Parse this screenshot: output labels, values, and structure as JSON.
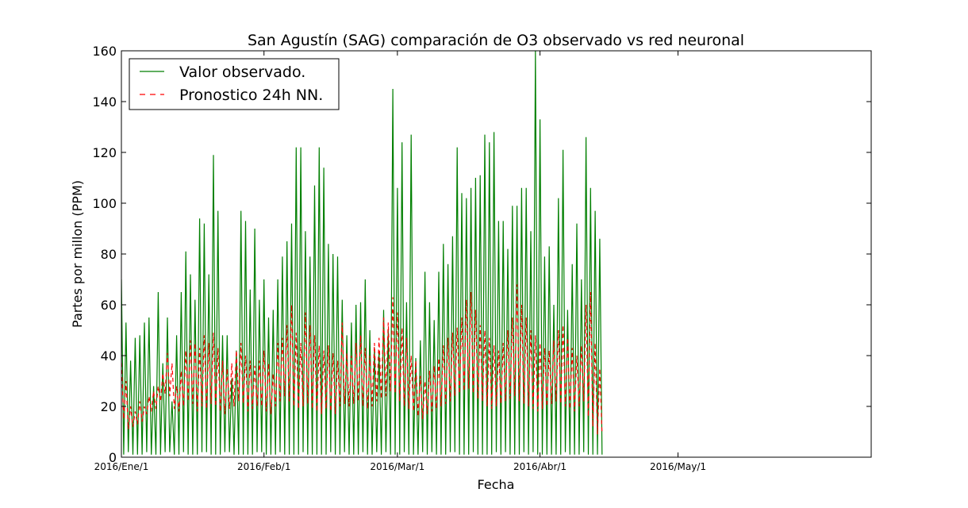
{
  "chart_data": {
    "type": "line",
    "title": "San Agustín (SAG) comparación de O3 observado vs red neuronal",
    "xlabel": "Fecha",
    "ylabel": "Partes por millon (PPM)",
    "ylim": [
      0,
      160
    ],
    "yticks": [
      "0",
      "20",
      "40",
      "60",
      "80",
      "100",
      "120",
      "140",
      "160"
    ],
    "x_axis": {
      "unit": "day_of_year_2016",
      "range": [
        1,
        164
      ],
      "ticks": [
        {
          "day": 1,
          "label": "2016/Ene/1"
        },
        {
          "day": 32,
          "label": "2016/Feb/1"
        },
        {
          "day": 61,
          "label": "2016/Mar/1"
        },
        {
          "day": 92,
          "label": "2016/Abr/1"
        },
        {
          "day": 122,
          "label": "2016/May/1"
        }
      ]
    },
    "grid": false,
    "legend_position": "top-left",
    "series": [
      {
        "name": "Valor observado.",
        "color": "#007f00",
        "style": "solid",
        "sampling": "daily peak and trough (approx. hourly data)",
        "x_start": 1,
        "x_step": 1,
        "daily_max": [
          70,
          53,
          38,
          47,
          48,
          53,
          55,
          28,
          65,
          37,
          55,
          22,
          48,
          65,
          81,
          72,
          62,
          94,
          92,
          72,
          119,
          97,
          48,
          48,
          31,
          42,
          97,
          93,
          66,
          90,
          62,
          70,
          55,
          58,
          70,
          79,
          85,
          92,
          122,
          122,
          89,
          79,
          107,
          122,
          114,
          84,
          80,
          79,
          62,
          48,
          53,
          60,
          61,
          70,
          50,
          43,
          42,
          58,
          50,
          145,
          106,
          124,
          61,
          127,
          39,
          46,
          73,
          61,
          54,
          73,
          84,
          76,
          87,
          122,
          104,
          102,
          106,
          110,
          111,
          127,
          124,
          128,
          93,
          93,
          82,
          99,
          99,
          106,
          106,
          89,
          160,
          133,
          79,
          83,
          60,
          102,
          121,
          58,
          76,
          92,
          70,
          126,
          106,
          97,
          86
        ],
        "daily_min": [
          2,
          1,
          2,
          1,
          1,
          1,
          2,
          1,
          1,
          1,
          2,
          2,
          1,
          1,
          2,
          1,
          1,
          1,
          2,
          2,
          1,
          1,
          1,
          2,
          2,
          1,
          1,
          1,
          1,
          1,
          2,
          2,
          1,
          1,
          1,
          2,
          1,
          1,
          1,
          1,
          2,
          1,
          1,
          1,
          1,
          1,
          2,
          1,
          1,
          2,
          1,
          1,
          1,
          2,
          1,
          1,
          2,
          1,
          2,
          1,
          1,
          1,
          2,
          1,
          1,
          1,
          2,
          1,
          2,
          1,
          1,
          1,
          2,
          2,
          1,
          1,
          1,
          2,
          1,
          1,
          1,
          1,
          2,
          1,
          2,
          1,
          1,
          1,
          2,
          1,
          2,
          1,
          1,
          1,
          1,
          1,
          1,
          2,
          1,
          1,
          1,
          2,
          1,
          1,
          1
        ]
      },
      {
        "name": "Pronostico 24h NN.",
        "color": "#ff0000",
        "style": "dashed",
        "sampling": "daily peak and trough",
        "x_start": 1,
        "x_step": 1,
        "daily_max": [
          38,
          30,
          20,
          18,
          22,
          20,
          24,
          26,
          28,
          33,
          41,
          37,
          28,
          34,
          42,
          46,
          45,
          43,
          48,
          45,
          49,
          43,
          38,
          35,
          37,
          42,
          45,
          40,
          38,
          36,
          38,
          42,
          37,
          33,
          45,
          47,
          52,
          60,
          49,
          45,
          57,
          52,
          48,
          44,
          42,
          44,
          41,
          38,
          53,
          41,
          40,
          45,
          48,
          43,
          40,
          45,
          47,
          55,
          53,
          63,
          57,
          51,
          47,
          40,
          38,
          32,
          30,
          34,
          36,
          39,
          44,
          47,
          49,
          51,
          55,
          62,
          65,
          58,
          52,
          50,
          47,
          44,
          42,
          45,
          50,
          55,
          68,
          60,
          55,
          50,
          48,
          45,
          43,
          42,
          46,
          50,
          52,
          47,
          43,
          40,
          44,
          60,
          65,
          45,
          35
        ],
        "daily_min": [
          22,
          15,
          11,
          12,
          13,
          14,
          17,
          18,
          19,
          22,
          25,
          24,
          19,
          18,
          20,
          22,
          21,
          18,
          20,
          19,
          21,
          20,
          18,
          17,
          19,
          20,
          22,
          21,
          18,
          19,
          20,
          20,
          18,
          17,
          20,
          22,
          24,
          22,
          20,
          19,
          20,
          21,
          19,
          18,
          17,
          19,
          18,
          17,
          20,
          21,
          20,
          21,
          22,
          20,
          19,
          20,
          22,
          23,
          24,
          26,
          25,
          22,
          20,
          19,
          18,
          16,
          15,
          17,
          18,
          19,
          20,
          21,
          22,
          24,
          25,
          26,
          27,
          25,
          23,
          22,
          20,
          19,
          20,
          21,
          22,
          23,
          24,
          22,
          21,
          20,
          19,
          18,
          19,
          20,
          21,
          22,
          21,
          20,
          19,
          18,
          20,
          22,
          16,
          12,
          9
        ]
      }
    ]
  }
}
